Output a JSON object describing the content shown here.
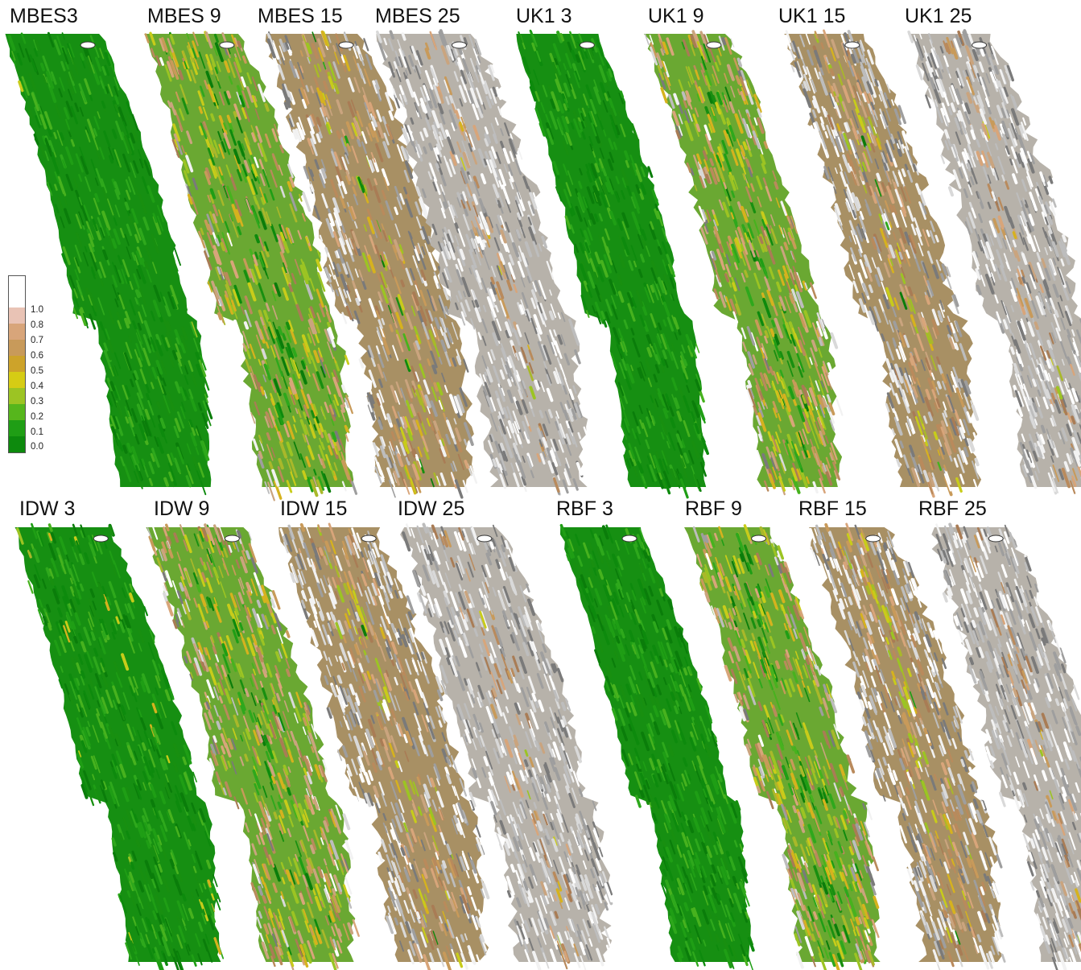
{
  "panels": [
    {
      "id": "mbes3",
      "label": "MBES3",
      "level": 0.05
    },
    {
      "id": "mbes9",
      "label": "MBES 9",
      "level": 0.4
    },
    {
      "id": "mbes15",
      "label": "MBES 15",
      "level": 0.6
    },
    {
      "id": "mbes25",
      "label": "MBES 25",
      "level": 0.85
    },
    {
      "id": "uk1-3",
      "label": "UK1 3",
      "level": 0.03
    },
    {
      "id": "uk1-9",
      "label": "UK1 9",
      "level": 0.45
    },
    {
      "id": "uk1-15",
      "label": "UK1 15",
      "level": 0.65
    },
    {
      "id": "uk1-25",
      "label": "UK1 25",
      "level": 0.85
    },
    {
      "id": "idw3",
      "label": "IDW 3",
      "level": 0.08
    },
    {
      "id": "idw9",
      "label": "IDW 9",
      "level": 0.45
    },
    {
      "id": "idw15",
      "label": "IDW 15",
      "level": 0.65
    },
    {
      "id": "idw25",
      "label": "IDW 25",
      "level": 0.85
    },
    {
      "id": "rbf3",
      "label": "RBF 3",
      "level": 0.03
    },
    {
      "id": "rbf9",
      "label": "RBF 9",
      "level": 0.4
    },
    {
      "id": "rbf15",
      "label": "RBF 15",
      "level": 0.65
    },
    {
      "id": "rbf25",
      "label": "RBF 25",
      "level": 0.85
    }
  ],
  "legend": {
    "ticks": [
      "1.0",
      "0.8",
      "0.7",
      "0.6",
      "0.5",
      "0.4",
      "0.3",
      "0.2",
      "0.1",
      "0.0"
    ],
    "colors": [
      "#ffffff",
      "#e9c3b5",
      "#d8a57a",
      "#c89a5a",
      "#cda32a",
      "#d6cc14",
      "#9cc423",
      "#56b61c",
      "#1f9e15",
      "#0d8a0d"
    ]
  }
}
